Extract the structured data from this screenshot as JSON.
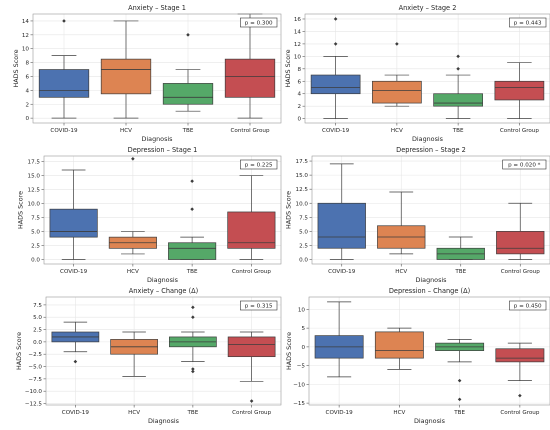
{
  "colors": {
    "COVID-19": "#4c72b0",
    "HCV": "#dd8452",
    "TBE": "#55a868",
    "Control Group": "#c44e52"
  },
  "chart_data": [
    {
      "type": "box",
      "title": "Anxiety – Stage 1",
      "xlabel": "Diagnosis",
      "ylabel": "HADS Score",
      "ylim": [
        -0.7,
        15
      ],
      "yticks": [
        0,
        2,
        4,
        6,
        8,
        10,
        12,
        14
      ],
      "yticklabels": [
        "0",
        "2",
        "4",
        "6",
        "8",
        "10",
        "12",
        "14"
      ],
      "annotation": "p = 0.300",
      "grid": true,
      "categories": [
        "COVID-19",
        "HCV",
        "TBE",
        "Control Group"
      ],
      "boxes": [
        {
          "min": 0,
          "q1": 3,
          "median": 4,
          "q3": 7,
          "max": 9,
          "outliers": [
            14
          ]
        },
        {
          "min": 0,
          "q1": 3.5,
          "median": 7,
          "q3": 8.5,
          "max": 14,
          "outliers": []
        },
        {
          "min": 1,
          "q1": 2,
          "median": 3,
          "q3": 5,
          "max": 7,
          "outliers": [
            12
          ]
        },
        {
          "min": 0,
          "q1": 3,
          "median": 6,
          "q3": 8.5,
          "max": 15,
          "outliers": []
        }
      ]
    },
    {
      "type": "box",
      "title": "Anxiety – Stage 2",
      "xlabel": "Diagnosis",
      "ylabel": "HADS Score",
      "ylim": [
        -0.7,
        16.8
      ],
      "yticks": [
        0,
        2,
        4,
        6,
        8,
        10,
        12,
        14,
        16
      ],
      "yticklabels": [
        "0",
        "2",
        "4",
        "6",
        "8",
        "10",
        "12",
        "14",
        "16"
      ],
      "annotation": "p = 0.443",
      "grid": true,
      "categories": [
        "COVID-19",
        "HCV",
        "TBE",
        "Control Group"
      ],
      "boxes": [
        {
          "min": 0,
          "q1": 4,
          "median": 5,
          "q3": 7,
          "max": 10,
          "outliers": [
            12,
            16
          ]
        },
        {
          "min": 2,
          "q1": 2.5,
          "median": 4.5,
          "q3": 6,
          "max": 7,
          "outliers": [
            12
          ]
        },
        {
          "min": 0,
          "q1": 2,
          "median": 2.5,
          "q3": 4,
          "max": 7,
          "outliers": [
            8,
            10
          ]
        },
        {
          "min": 0,
          "q1": 3,
          "median": 5,
          "q3": 6,
          "max": 9,
          "outliers": []
        }
      ]
    },
    {
      "type": "box",
      "title": "Depression – Stage 1",
      "xlabel": "Diagnosis",
      "ylabel": "HADS Score",
      "ylim": [
        -0.8,
        18.5
      ],
      "yticks": [
        0,
        2.5,
        5,
        7.5,
        10,
        12.5,
        15,
        17.5
      ],
      "yticklabels": [
        "0.0",
        "2.5",
        "5.0",
        "7.5",
        "10.0",
        "12.5",
        "15.0",
        "17.5"
      ],
      "annotation": "p = 0.225",
      "grid": true,
      "categories": [
        "COVID-19",
        "HCV",
        "TBE",
        "Control Group"
      ],
      "boxes": [
        {
          "min": 0,
          "q1": 4,
          "median": 5,
          "q3": 9,
          "max": 16,
          "outliers": []
        },
        {
          "min": 1,
          "q1": 2,
          "median": 3,
          "q3": 4,
          "max": 5,
          "outliers": [
            18
          ]
        },
        {
          "min": 0,
          "q1": 0,
          "median": 2,
          "q3": 3,
          "max": 4,
          "outliers": [
            9,
            14
          ]
        },
        {
          "min": 0,
          "q1": 2,
          "median": 3,
          "q3": 8.5,
          "max": 15,
          "outliers": []
        }
      ]
    },
    {
      "type": "box",
      "title": "Depression – Stage 2",
      "xlabel": "Diagnosis",
      "ylabel": "HADS Score",
      "ylim": [
        -0.8,
        18.4
      ],
      "yticks": [
        0,
        2.5,
        5,
        7.5,
        10,
        12.5,
        15,
        17.5
      ],
      "yticklabels": [
        "0.0",
        "2.5",
        "5.0",
        "7.5",
        "10.0",
        "12.5",
        "15.0",
        "17.5"
      ],
      "annotation": "p = 0.020 *",
      "grid": true,
      "categories": [
        "COVID-19",
        "HCV",
        "TBE",
        "Control Group"
      ],
      "boxes": [
        {
          "min": 0,
          "q1": 2,
          "median": 4,
          "q3": 10,
          "max": 17,
          "outliers": []
        },
        {
          "min": 1,
          "q1": 2,
          "median": 4,
          "q3": 6,
          "max": 12,
          "outliers": []
        },
        {
          "min": 0,
          "q1": 0,
          "median": 1,
          "q3": 2,
          "max": 4,
          "outliers": []
        },
        {
          "min": 0,
          "q1": 1,
          "median": 2,
          "q3": 5,
          "max": 10,
          "outliers": []
        }
      ]
    },
    {
      "type": "box",
      "title": "Anxiety – Change (Δ)",
      "xlabel": "Diagnosis",
      "ylabel": "HADS Score",
      "ylim": [
        -12.8,
        9.1
      ],
      "yticks": [
        -12.5,
        -10,
        -7.5,
        -5,
        -2.5,
        0,
        2.5,
        5,
        7.5
      ],
      "yticklabels": [
        "−12.5",
        "−10.0",
        "−7.5",
        "−5.0",
        "−2.5",
        "0.0",
        "2.5",
        "5.0",
        "7.5"
      ],
      "annotation": "p = 0.315",
      "grid": true,
      "categories": [
        "COVID-19",
        "HCV",
        "TBE",
        "Control Group"
      ],
      "boxes": [
        {
          "min": -2,
          "q1": 0,
          "median": 1,
          "q3": 2,
          "max": 4,
          "outliers": [
            -4
          ]
        },
        {
          "min": -7,
          "q1": -2.5,
          "median": -1,
          "q3": 0.5,
          "max": 2,
          "outliers": []
        },
        {
          "min": -4,
          "q1": -1,
          "median": 0,
          "q3": 1,
          "max": 2,
          "outliers": [
            5,
            7,
            -5.5,
            -6
          ]
        },
        {
          "min": -8,
          "q1": -3,
          "median": -0.5,
          "q3": 1,
          "max": 2,
          "outliers": [
            -12
          ]
        }
      ]
    },
    {
      "type": "box",
      "title": "Depression – Change (Δ)",
      "xlabel": "Diagnosis",
      "ylabel": "HADS Score",
      "ylim": [
        -15.5,
        13.3
      ],
      "yticks": [
        -15,
        -10,
        -5,
        0,
        5,
        10
      ],
      "yticklabels": [
        "−15",
        "−10",
        "−5",
        "0",
        "5",
        "10"
      ],
      "annotation": "p = 0.450",
      "grid": true,
      "categories": [
        "COVID-19",
        "HCV",
        "TBE",
        "Control Group"
      ],
      "boxes": [
        {
          "min": -8,
          "q1": -3,
          "median": 0,
          "q3": 3,
          "max": 12,
          "outliers": []
        },
        {
          "min": -6,
          "q1": -3,
          "median": -1,
          "q3": 4,
          "max": 5,
          "outliers": []
        },
        {
          "min": -4,
          "q1": -1,
          "median": 0,
          "q3": 1,
          "max": 2,
          "outliers": [
            -9,
            -14
          ]
        },
        {
          "min": -9,
          "q1": -4,
          "median": -3,
          "q3": -0.5,
          "max": 1,
          "outliers": [
            -13
          ]
        }
      ]
    }
  ]
}
